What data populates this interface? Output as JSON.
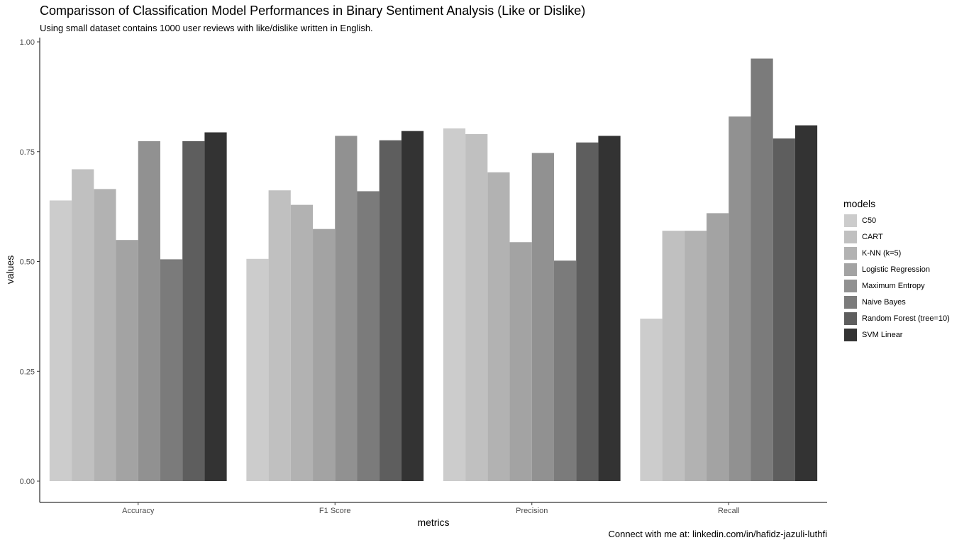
{
  "chart_data": {
    "type": "bar",
    "title": "Comparisson of Classification Model Performances in Binary Sentiment Analysis (Like or Dislike)",
    "subtitle": "Using small dataset contains 1000 user reviews with like/dislike written in English.",
    "caption": "Connect with me at: linkedin.com/in/hafidz-jazuli-luthfi",
    "xlabel": "metrics",
    "ylabel": "values",
    "ylim": [
      0,
      1
    ],
    "yticks": [
      0,
      0.25,
      0.5,
      0.75,
      1
    ],
    "ytick_labels": [
      "0.00",
      "0.25",
      "0.50",
      "0.75",
      "1.00"
    ],
    "categories": [
      "Accuracy",
      "F1 Score",
      "Precision",
      "Recall"
    ],
    "legend_title": "models",
    "legend_position": "right",
    "grid": false,
    "series": [
      {
        "name": "C50",
        "color": "#cccccc",
        "values": [
          0.639,
          0.506,
          0.803,
          0.37
        ]
      },
      {
        "name": "CART",
        "color": "#c0c0c0",
        "values": [
          0.71,
          0.662,
          0.79,
          0.57
        ]
      },
      {
        "name": "K-NN (k=5)",
        "color": "#b2b2b2",
        "values": [
          0.665,
          0.629,
          0.703,
          0.57
        ]
      },
      {
        "name": "Logistic Regression",
        "color": "#a3a3a3",
        "values": [
          0.549,
          0.574,
          0.544,
          0.61
        ]
      },
      {
        "name": "Maximum Entropy",
        "color": "#919191",
        "values": [
          0.774,
          0.786,
          0.747,
          0.83
        ]
      },
      {
        "name": "Naive Bayes",
        "color": "#7b7b7b",
        "values": [
          0.505,
          0.66,
          0.502,
          0.962
        ]
      },
      {
        "name": "Random Forest (tree=10)",
        "color": "#5e5e5e",
        "values": [
          0.774,
          0.776,
          0.771,
          0.78
        ]
      },
      {
        "name": "SVM Linear",
        "color": "#333333",
        "values": [
          0.794,
          0.797,
          0.786,
          0.81
        ]
      }
    ]
  }
}
